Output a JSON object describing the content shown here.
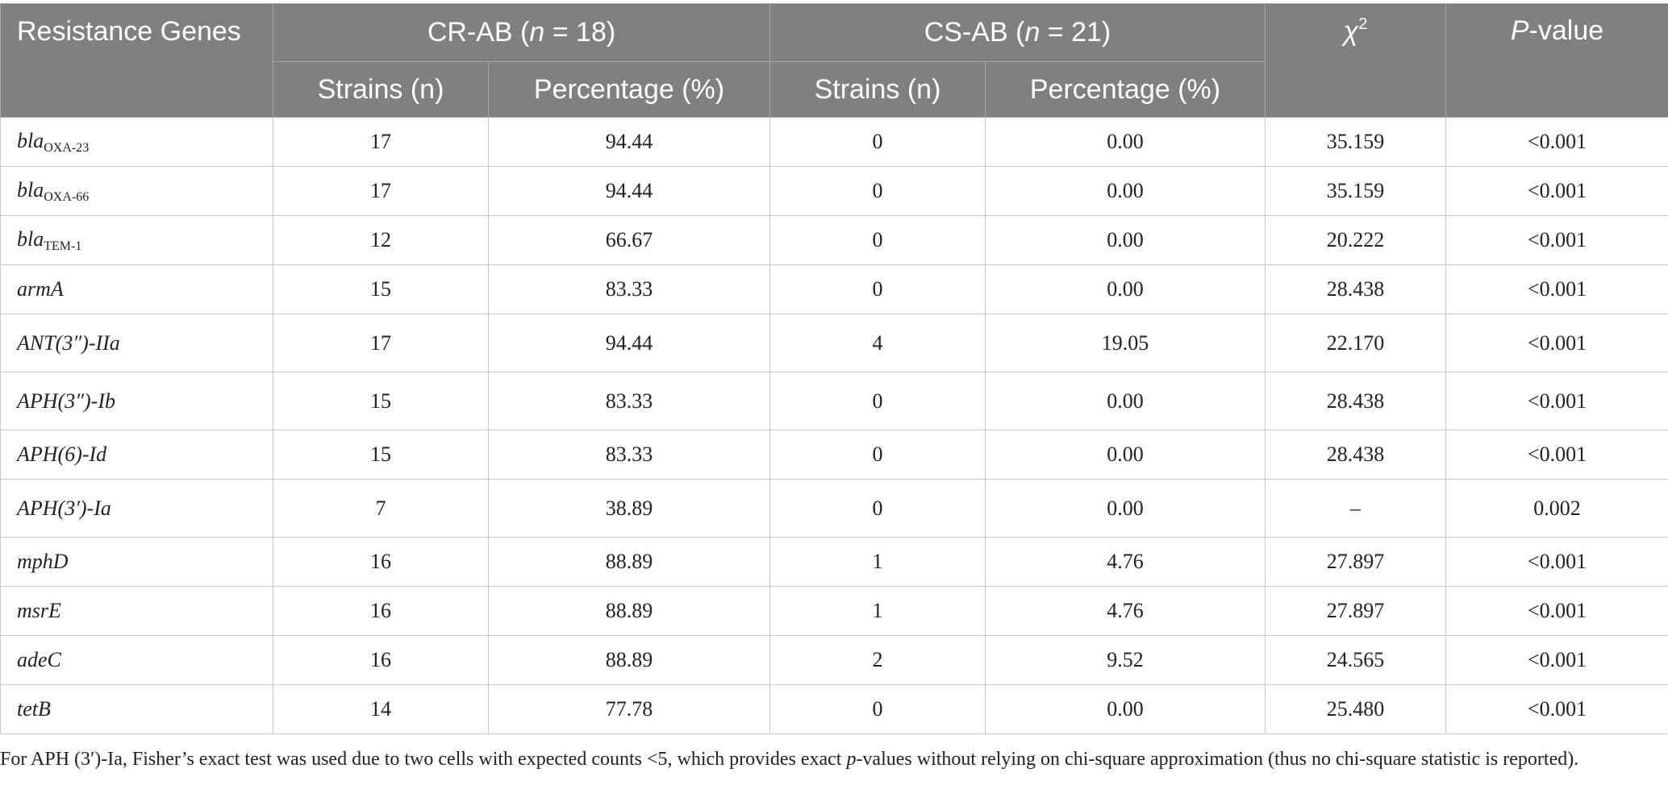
{
  "table": {
    "header": {
      "gene": "Resistance Genes",
      "groups": [
        {
          "pre": "CR-AB (",
          "italic": "n",
          "post": " = 18)"
        },
        {
          "pre": "CS-AB (",
          "italic": "n",
          "post": " = 21)"
        }
      ],
      "subheaders": [
        "Strains (n)",
        "Percentage (%)",
        "Strains (n)",
        "Percentage (%)"
      ],
      "chi": {
        "symbol": "χ",
        "sup": "2"
      },
      "p": {
        "italic": "P",
        "rest": "-value"
      }
    },
    "rows": [
      {
        "gene": {
          "name": "bla",
          "sub": "OXA-23"
        },
        "cells": [
          "17",
          "94.44",
          "0",
          "0.00",
          "35.159",
          "<0.001"
        ]
      },
      {
        "gene": {
          "name": "bla",
          "sub": "OXA-66"
        },
        "cells": [
          "17",
          "94.44",
          "0",
          "0.00",
          "35.159",
          "<0.001"
        ]
      },
      {
        "gene": {
          "name": "bla",
          "sub": "TEM-1"
        },
        "cells": [
          "12",
          "66.67",
          "0",
          "0.00",
          "20.222",
          "<0.001"
        ]
      },
      {
        "gene": {
          "name": "armA"
        },
        "cells": [
          "15",
          "83.33",
          "0",
          "0.00",
          "28.438",
          "<0.001"
        ]
      },
      {
        "gene": {
          "name": "ANT(3″)-IIa"
        },
        "cells": [
          "17",
          "94.44",
          "4",
          "19.05",
          "22.170",
          "<0.001"
        ]
      },
      {
        "gene": {
          "name": "APH(3″)-Ib"
        },
        "cells": [
          "15",
          "83.33",
          "0",
          "0.00",
          "28.438",
          "<0.001"
        ]
      },
      {
        "gene": {
          "name": "APH(6)-Id"
        },
        "cells": [
          "15",
          "83.33",
          "0",
          "0.00",
          "28.438",
          "<0.001"
        ]
      },
      {
        "gene": {
          "name": "APH(3′)-Ia"
        },
        "cells": [
          "7",
          "38.89",
          "0",
          "0.00",
          "–",
          "0.002"
        ]
      },
      {
        "gene": {
          "name": "mphD"
        },
        "cells": [
          "16",
          "88.89",
          "1",
          "4.76",
          "27.897",
          "<0.001"
        ]
      },
      {
        "gene": {
          "name": "msrE"
        },
        "cells": [
          "16",
          "88.89",
          "1",
          "4.76",
          "27.897",
          "<0.001"
        ]
      },
      {
        "gene": {
          "name": "adeC"
        },
        "cells": [
          "16",
          "88.89",
          "2",
          "9.52",
          "24.565",
          "<0.001"
        ]
      },
      {
        "gene": {
          "name": "tetB"
        },
        "cells": [
          "14",
          "77.78",
          "0",
          "0.00",
          "25.480",
          "<0.001"
        ]
      }
    ]
  },
  "footnote": {
    "pre": "For APH (3′)-Ia, Fisher’s exact test was used due to two cells with expected counts <5, which provides exact ",
    "italic": "p",
    "post": "-values without relying on chi-square approximation (thus no chi-square statistic is reported)."
  }
}
